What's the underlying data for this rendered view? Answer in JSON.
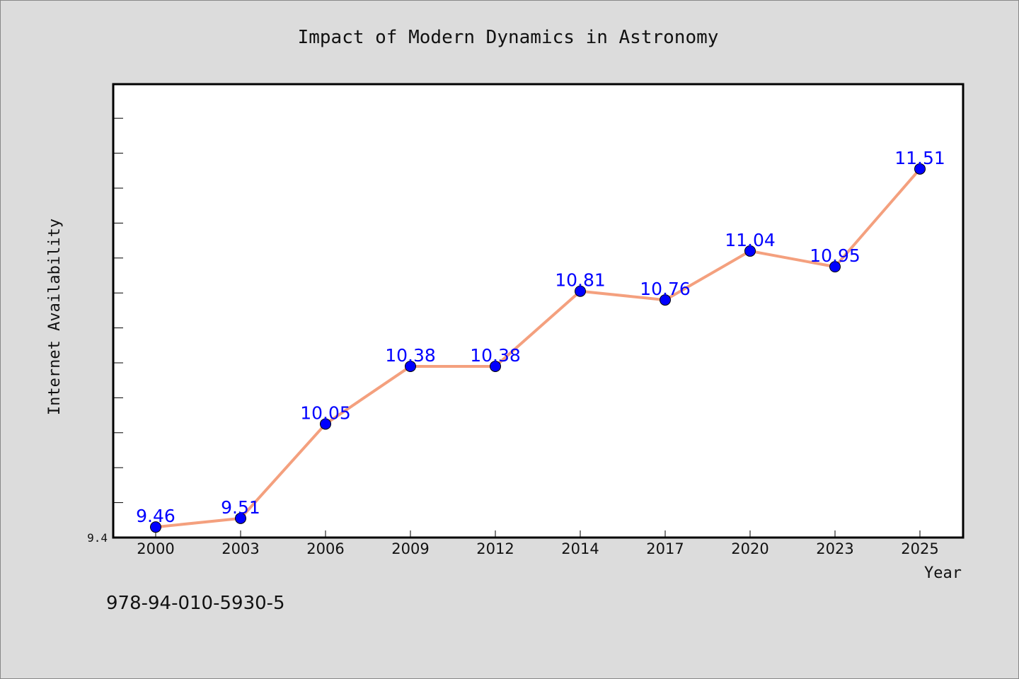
{
  "chart_data": {
    "type": "line",
    "title": "Impact of Modern Dynamics in Astronomy",
    "xlabel": "Year",
    "ylabel": "Internet Availability",
    "categories": [
      "2000",
      "2003",
      "2006",
      "2009",
      "2012",
      "2014",
      "2017",
      "2020",
      "2023",
      "2025"
    ],
    "series": [
      {
        "values": [
          9.46,
          9.51,
          10.05,
          10.38,
          10.38,
          10.81,
          10.76,
          11.04,
          10.95,
          11.51
        ],
        "line_color": "#f4a07e",
        "marker_color": "#0000ff"
      }
    ],
    "data_labels": [
      "9.46",
      "9.51",
      "10.05",
      "10.38",
      "10.38",
      "10.81",
      "10.76",
      "11.04",
      "10.95",
      "11.51"
    ],
    "ylim": [
      9.4,
      12.0
    ],
    "yticks_labeled": [
      "9.4"
    ],
    "grid": false,
    "legend": "none"
  },
  "footer": {
    "isbn": "978-94-010-5930-5"
  }
}
